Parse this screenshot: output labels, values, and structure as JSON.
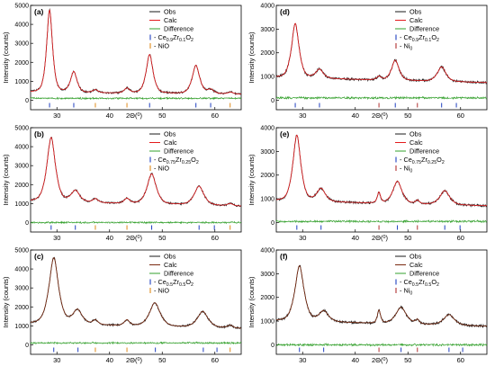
{
  "colors": {
    "obs": "#1a1a1a",
    "calc": "#e31a1c",
    "calc_dark": "#7a2a10",
    "difference": "#33a02c",
    "tick_ceo2": "#1f3fbf",
    "tick_nio": "#e08a1a",
    "tick_ni": "#b03030"
  },
  "chart_data": [
    {
      "type": "line",
      "panel": "(a)",
      "xlabel": "2Θ(0)",
      "ylabel": "Intensity (counts)",
      "xlim": [
        25,
        65
      ],
      "ylim": [
        -500,
        5000
      ],
      "yticks": [
        "0",
        "1000",
        "2000",
        "3000",
        "4000",
        "5000"
      ],
      "xticks": [
        "30",
        "40",
        "50",
        "60"
      ],
      "legend": [
        "Obs",
        "Calc",
        "Difference",
        "- Ce0.9Zr0.1O2",
        "- NiO"
      ],
      "baseline": 400,
      "peaks": [
        [
          28.6,
          4350,
          0.55
        ],
        [
          33.2,
          1100,
          0.6
        ],
        [
          37.3,
          160,
          0.5
        ],
        [
          43.3,
          260,
          0.5
        ],
        [
          47.6,
          2050,
          0.65
        ],
        [
          56.4,
          1500,
          0.7
        ],
        [
          59.2,
          220,
          0.6
        ],
        [
          63.0,
          100,
          0.5
        ]
      ],
      "difference_level": 100,
      "reflections_phase1": [
        28.6,
        33.2,
        47.6,
        56.4,
        59.2
      ],
      "reflections_phase2": [
        37.3,
        43.3,
        62.9
      ]
    },
    {
      "type": "line",
      "panel": "(b)",
      "xlabel": "2Θ(0)",
      "ylabel": "Intensity (counts)",
      "xlim": [
        25,
        65
      ],
      "ylim": [
        -500,
        5000
      ],
      "yticks": [
        "0",
        "1000",
        "2000",
        "3000",
        "4000",
        "5000"
      ],
      "xticks": [
        "30",
        "40",
        "50",
        "60"
      ],
      "legend": [
        "Obs",
        "Calc",
        "Difference",
        "- Ce0.75Zr0.25O2",
        "- NiO"
      ],
      "baseline": 1100,
      "peaks": [
        [
          28.9,
          3400,
          0.8
        ],
        [
          33.5,
          600,
          0.8
        ],
        [
          37.3,
          200,
          0.5
        ],
        [
          43.3,
          260,
          0.5
        ],
        [
          48.0,
          1600,
          0.85
        ],
        [
          57.0,
          1000,
          0.9
        ],
        [
          62.9,
          120,
          0.5
        ]
      ],
      "difference_level": 0,
      "reflections_phase1": [
        28.9,
        33.5,
        48.0,
        57.0,
        59.9
      ],
      "reflections_phase2": [
        37.3,
        43.3,
        62.9
      ]
    },
    {
      "type": "line",
      "panel": "(c)",
      "xlabel": "2Θ(0)",
      "ylabel": "Intensity (counts)",
      "xlim": [
        25,
        65
      ],
      "ylim": [
        -500,
        5000
      ],
      "yticks": [
        "0",
        "1000",
        "2000",
        "3000",
        "4000",
        "5000"
      ],
      "xticks": [
        "30",
        "40",
        "50",
        "60"
      ],
      "legend": [
        "Obs",
        "Calc",
        "Difference",
        "- Ce0.5Zr0.5O2",
        "- NiO"
      ],
      "baseline": 1100,
      "peaks": [
        [
          29.4,
          3500,
          0.9
        ],
        [
          33.9,
          750,
          0.9
        ],
        [
          37.3,
          240,
          0.5
        ],
        [
          43.3,
          300,
          0.5
        ],
        [
          48.6,
          1250,
          1.0
        ],
        [
          57.7,
          850,
          1.0
        ],
        [
          62.9,
          150,
          0.5
        ]
      ],
      "difference_level": 100,
      "reflections_phase1": [
        29.4,
        34.0,
        48.7,
        57.8,
        60.4
      ],
      "reflections_phase2": [
        37.3,
        43.3,
        62.9
      ]
    },
    {
      "type": "line",
      "panel": "(d)",
      "xlabel": "2Θ(0)",
      "ylabel": "Intensity (counts)",
      "xlim": [
        25,
        65
      ],
      "ylim": [
        -400,
        4000
      ],
      "yticks": [
        "0",
        "1000",
        "2000",
        "3000",
        "4000"
      ],
      "xticks": [
        "30",
        "40",
        "50",
        "60"
      ],
      "legend": [
        "Obs",
        "Calc",
        "Difference",
        "- Ce0.9Zr0.1O2",
        "- Ni0"
      ],
      "baseline": 950,
      "peaks": [
        [
          28.6,
          2300,
          0.7
        ],
        [
          33.2,
          380,
          0.7
        ],
        [
          44.5,
          150,
          0.4
        ],
        [
          47.6,
          850,
          0.7
        ],
        [
          56.4,
          620,
          0.8
        ]
      ],
      "difference_level": 100,
      "reflections_phase1": [
        28.6,
        33.2,
        47.6,
        56.4,
        59.2
      ],
      "reflections_phase2": [
        44.5,
        51.8
      ]
    },
    {
      "type": "line",
      "panel": "(e)",
      "xlabel": "2Θ(0)",
      "ylabel": "Intensity (counts)",
      "xlim": [
        25,
        65
      ],
      "ylim": [
        -400,
        4000
      ],
      "yticks": [
        "0",
        "1000",
        "2000",
        "3000",
        "4000"
      ],
      "xticks": [
        "30",
        "40",
        "50",
        "60"
      ],
      "legend": [
        "Obs",
        "Calc",
        "Difference",
        "- Ce0.75Zr0.25O2",
        "- Ni0"
      ],
      "baseline": 900,
      "peaks": [
        [
          28.9,
          2800,
          0.75
        ],
        [
          33.5,
          550,
          0.8
        ],
        [
          44.5,
          450,
          0.3
        ],
        [
          48.0,
          950,
          0.85
        ],
        [
          51.8,
          150,
          0.35
        ],
        [
          57.0,
          600,
          0.9
        ]
      ],
      "difference_level": 50,
      "reflections_phase1": [
        28.9,
        33.5,
        48.0,
        57.0,
        59.9
      ],
      "reflections_phase2": [
        44.5,
        51.8
      ]
    },
    {
      "type": "line",
      "panel": "(f)",
      "xlabel": "2Θ(0)",
      "ylabel": "Intensity (counts)",
      "xlim": [
        25,
        65
      ],
      "ylim": [
        -400,
        4000
      ],
      "yticks": [
        "0",
        "1000",
        "2000",
        "3000",
        "4000"
      ],
      "xticks": [
        "30",
        "40",
        "50",
        "60"
      ],
      "legend": [
        "Obs",
        "Calc",
        "Difference",
        "- Ce0.5Zr0.5O2",
        "- Ni0"
      ],
      "baseline": 1000,
      "peaks": [
        [
          29.4,
          2350,
          0.85
        ],
        [
          34.0,
          450,
          0.9
        ],
        [
          44.5,
          550,
          0.3
        ],
        [
          48.7,
          700,
          1.0
        ],
        [
          51.8,
          180,
          0.35
        ],
        [
          57.8,
          450,
          1.0
        ]
      ],
      "difference_level": 0,
      "reflections_phase1": [
        29.4,
        34.0,
        48.7,
        57.8,
        60.4
      ],
      "reflections_phase2": [
        44.5,
        51.8
      ]
    }
  ]
}
